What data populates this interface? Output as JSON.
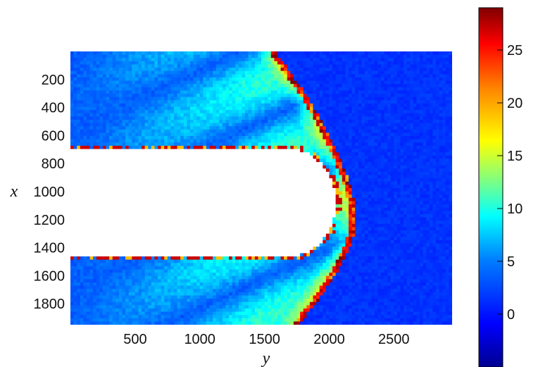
{
  "chart_data": {
    "type": "heatmap",
    "title": "",
    "xlabel": "y",
    "ylabel": "x",
    "x_axis": {
      "range": [
        0,
        2950
      ],
      "ticks": [
        500,
        1000,
        1500,
        2000,
        2500
      ],
      "tick_labels": [
        "500",
        "1000",
        "1500",
        "2000",
        "2500"
      ]
    },
    "y_axis": {
      "range": [
        0,
        1950
      ],
      "reversed": true,
      "ticks": [
        200,
        400,
        600,
        800,
        1000,
        1200,
        1400,
        1600,
        1800
      ],
      "tick_labels": [
        "200",
        "400",
        "600",
        "800",
        "1000",
        "1200",
        "1400",
        "1600",
        "1800"
      ]
    },
    "colorbar": {
      "range": [
        -5,
        29
      ],
      "ticks": [
        0,
        5,
        10,
        15,
        20,
        25
      ],
      "tick_labels": [
        "0",
        "5",
        "10",
        "15",
        "20",
        "25"
      ],
      "colormap": "jet",
      "stops": [
        "#00008f",
        "#0000ff",
        "#0080ff",
        "#00ffff",
        "#80ff80",
        "#ffff00",
        "#ff8000",
        "#ff0000",
        "#800000"
      ]
    },
    "field": {
      "background_value": 1.5,
      "obstacle": {
        "description": "white empty region",
        "y_from": 0,
        "y_to": 2050,
        "x_from": 700,
        "x_to": 1460,
        "nose_center_y": 1700
      },
      "shock_front": {
        "vertex_y": 2200,
        "vertex_x": 1200,
        "outer_y_at_top": 1570,
        "outer_y_at_bottom": 1750,
        "peak_value": 28
      },
      "wake_band_value": 7
    },
    "grid": false
  }
}
